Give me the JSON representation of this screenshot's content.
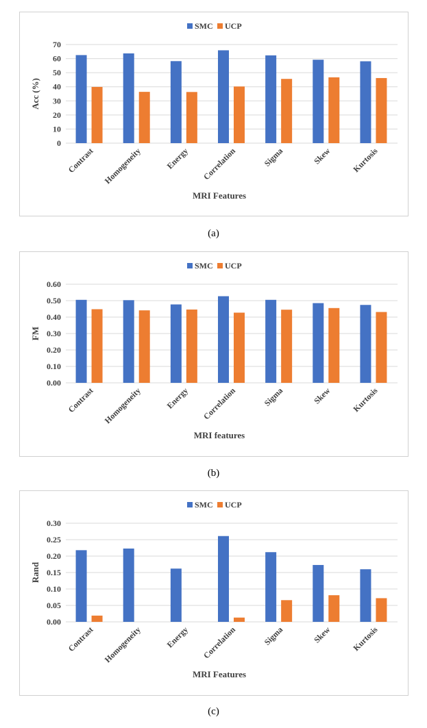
{
  "colors": {
    "smc": "#4472C4",
    "ucp": "#ED7D31",
    "grid": "#d9d9d9",
    "text": "#404040"
  },
  "chart_data": [
    {
      "type": "bar",
      "caption": "(a)",
      "ylabel": "Acc (%)",
      "xlabel": "MRI Features",
      "ylim": [
        0,
        70
      ],
      "yticks": [
        "0",
        "10",
        "20",
        "30",
        "40",
        "50",
        "60",
        "70"
      ],
      "ytick_values": [
        0,
        10,
        20,
        30,
        40,
        50,
        60,
        70
      ],
      "categories": [
        "Contrast",
        "Homogeneity",
        "Energy",
        "Correlation",
        "Sigma",
        "Skew",
        "Kurtosis"
      ],
      "legend": [
        "SMC",
        "UCP"
      ],
      "series": [
        {
          "name": "SMC",
          "values": [
            62.5,
            63.7,
            58.2,
            65.9,
            62.3,
            59.2,
            58.1
          ]
        },
        {
          "name": "UCP",
          "values": [
            39.9,
            36.4,
            36.3,
            40.2,
            45.6,
            46.7,
            46.2
          ]
        }
      ]
    },
    {
      "type": "bar",
      "caption": "(b)",
      "ylabel": "FM",
      "xlabel": "MRI features",
      "ylim": [
        0,
        0.6
      ],
      "yticks": [
        "0.00",
        "0.10",
        "0.20",
        "0.30",
        "0.40",
        "0.50",
        "0.60"
      ],
      "ytick_values": [
        0,
        0.1,
        0.2,
        0.3,
        0.4,
        0.5,
        0.6
      ],
      "categories": [
        "Contrast",
        "Homogeneity",
        "Energy",
        "Correlation",
        "Sigma",
        "Skew",
        "Kurtosis"
      ],
      "legend": [
        "SMC",
        "UCP"
      ],
      "series": [
        {
          "name": "SMC",
          "values": [
            0.505,
            0.503,
            0.477,
            0.527,
            0.505,
            0.485,
            0.474
          ]
        },
        {
          "name": "UCP",
          "values": [
            0.448,
            0.441,
            0.446,
            0.427,
            0.445,
            0.455,
            0.431
          ]
        }
      ]
    },
    {
      "type": "bar",
      "caption": "(c)",
      "ylabel": "Rand",
      "xlabel": "MRI Features",
      "ylim": [
        0,
        0.3
      ],
      "yticks": [
        "0.00",
        "0.05",
        "0.10",
        "0.15",
        "0.20",
        "0.25",
        "0.30"
      ],
      "ytick_values": [
        0,
        0.05,
        0.1,
        0.15,
        0.2,
        0.25,
        0.3
      ],
      "categories": [
        "Contrast",
        "Homogeneity",
        "Energy",
        "Correlation",
        "Sigma",
        "Skew",
        "Kurtosis"
      ],
      "legend": [
        "SMC",
        "UCP"
      ],
      "series": [
        {
          "name": "SMC",
          "values": [
            0.218,
            0.223,
            0.162,
            0.261,
            0.212,
            0.173,
            0.16
          ]
        },
        {
          "name": "UCP",
          "values": [
            0.019,
            0.0,
            0.0,
            0.013,
            0.066,
            0.081,
            0.072
          ]
        }
      ]
    }
  ]
}
